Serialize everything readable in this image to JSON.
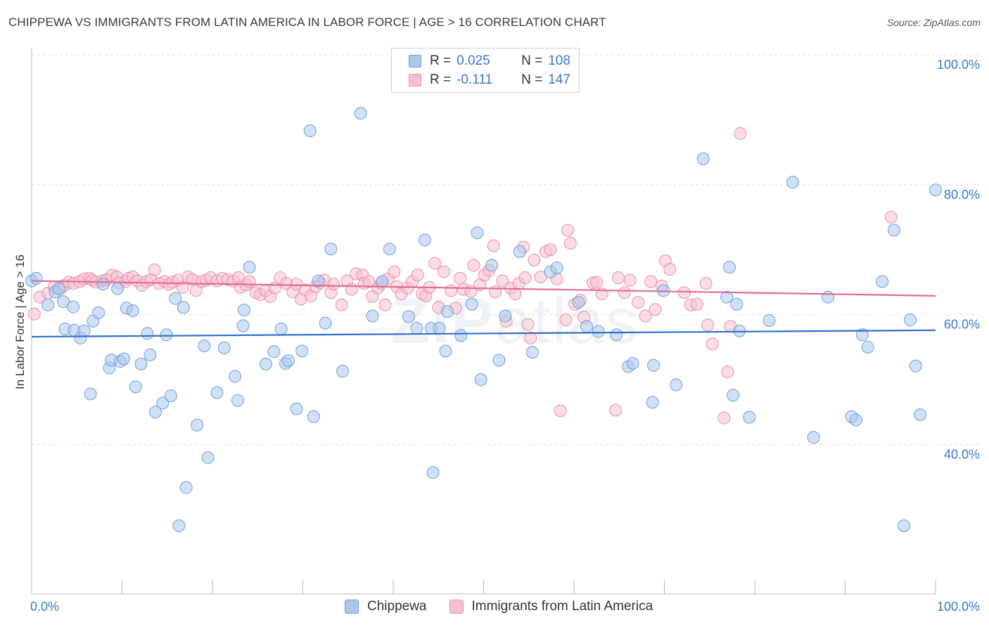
{
  "title": "CHIPPEWA VS IMMIGRANTS FROM LATIN AMERICA IN LABOR FORCE | AGE > 16 CORRELATION CHART",
  "source": "Source: ZipAtlas.com",
  "watermark": {
    "bold": "ZIP",
    "light": "atlas"
  },
  "colors": {
    "blue_fill": "#aac8ee",
    "blue_stroke": "#6f9fd8",
    "blue_line": "#2f6fce",
    "pink_fill": "#f6bfd0",
    "pink_stroke": "#e98fab",
    "pink_line": "#e36b94",
    "axis_label": "#3a78c9",
    "grid": "#dddddd"
  },
  "legend": {
    "rows": [
      {
        "r_label": "R =",
        "r_value": "0.025",
        "n_label": "N =",
        "n_value": "108"
      },
      {
        "r_label": "R =",
        "r_value": "-0.111",
        "n_label": "N =",
        "n_value": "147"
      }
    ]
  },
  "bottom_legend": {
    "series1": "Chippewa",
    "series2": "Immigrants from Latin America"
  },
  "chart_data": {
    "type": "scatter",
    "title": "CHIPPEWA VS IMMIGRANTS FROM LATIN AMERICA IN LABOR FORCE | AGE > 16 CORRELATION CHART",
    "xlabel": "",
    "ylabel": "In Labor Force | Age > 16",
    "xlim": [
      0,
      100
    ],
    "ylim": [
      17,
      100
    ],
    "x_tick_labels": [
      "0.0%",
      "100.0%"
    ],
    "y_ticks": [
      40,
      60,
      80,
      100
    ],
    "y_tick_labels": [
      "40.0%",
      "60.0%",
      "80.0%",
      "100.0%"
    ],
    "grid": "horizontal dashed",
    "legend_position": "top-center",
    "series": [
      {
        "name": "Chippewa",
        "r": 0.025,
        "n": 108,
        "trend": [
          [
            0,
            56.6
          ],
          [
            100,
            57.6
          ]
        ],
        "points": [
          [
            0,
            65.2
          ],
          [
            0.5,
            65.6
          ],
          [
            1.8,
            61.5
          ],
          [
            2.6,
            63.5
          ],
          [
            3,
            64
          ],
          [
            3.5,
            62
          ],
          [
            3.7,
            57.8
          ],
          [
            4.6,
            61.2
          ],
          [
            4.7,
            57.6
          ],
          [
            5.4,
            56.4
          ],
          [
            5.8,
            57.5
          ],
          [
            6.5,
            47.8
          ],
          [
            6.8,
            59
          ],
          [
            7.4,
            60.3
          ],
          [
            7.9,
            64.7
          ],
          [
            8.6,
            51.8
          ],
          [
            8.8,
            53
          ],
          [
            9.5,
            64
          ],
          [
            9.8,
            52.8
          ],
          [
            10.2,
            53.2
          ],
          [
            10.5,
            61
          ],
          [
            11.2,
            60.6
          ],
          [
            11.5,
            48.9
          ],
          [
            12.1,
            52.4
          ],
          [
            12.8,
            57.1
          ],
          [
            13.1,
            53.8
          ],
          [
            13.7,
            45
          ],
          [
            14.5,
            46.4
          ],
          [
            14.9,
            56.9
          ],
          [
            15.4,
            47.5
          ],
          [
            15.9,
            62.5
          ],
          [
            16.3,
            27.5
          ],
          [
            16.8,
            61.1
          ],
          [
            17.1,
            33.4
          ],
          [
            18.3,
            43
          ],
          [
            19.1,
            55.2
          ],
          [
            19.5,
            38
          ],
          [
            20.5,
            48
          ],
          [
            21.3,
            54.9
          ],
          [
            22.5,
            50.5
          ],
          [
            22.8,
            46.8
          ],
          [
            23.5,
            60.7
          ],
          [
            23.4,
            58.3
          ],
          [
            24.1,
            67.3
          ],
          [
            25.9,
            52.4
          ],
          [
            26.8,
            54.3
          ],
          [
            27.6,
            57.8
          ],
          [
            28.1,
            52.5
          ],
          [
            28.4,
            52.9
          ],
          [
            29.3,
            45.5
          ],
          [
            29.9,
            54.4
          ],
          [
            30.8,
            88.3
          ],
          [
            31.2,
            44.3
          ],
          [
            31.7,
            65.2
          ],
          [
            32.5,
            58.7
          ],
          [
            33.1,
            70.1
          ],
          [
            34.4,
            51.3
          ],
          [
            36.4,
            91
          ],
          [
            37.7,
            59.8
          ],
          [
            38.8,
            65.1
          ],
          [
            39.6,
            70.1
          ],
          [
            41.7,
            59.7
          ],
          [
            42.6,
            57.9
          ],
          [
            43.5,
            71.5
          ],
          [
            44.2,
            57.9
          ],
          [
            44.4,
            35.7
          ],
          [
            45.1,
            57.9
          ],
          [
            45.8,
            54.4
          ],
          [
            46,
            60.5
          ],
          [
            47.5,
            56.8
          ],
          [
            48.7,
            61.6
          ],
          [
            49.3,
            72.6
          ],
          [
            49.7,
            50
          ],
          [
            50.9,
            67.6
          ],
          [
            51.7,
            53
          ],
          [
            52.4,
            59.8
          ],
          [
            54,
            69.7
          ],
          [
            55.4,
            54.2
          ],
          [
            57.4,
            66.6
          ],
          [
            58.1,
            67.2
          ],
          [
            60.5,
            61.9
          ],
          [
            61.4,
            58.2
          ],
          [
            62.7,
            57.4
          ],
          [
            64.7,
            56.9
          ],
          [
            66,
            52
          ],
          [
            66.5,
            52.5
          ],
          [
            68.7,
            46.5
          ],
          [
            68.8,
            52.2
          ],
          [
            69.9,
            63.7
          ],
          [
            71.3,
            49.2
          ],
          [
            74.3,
            84
          ],
          [
            76.9,
            62.7
          ],
          [
            77.2,
            67.3
          ],
          [
            77.6,
            47.6
          ],
          [
            78,
            61.6
          ],
          [
            78.3,
            57.5
          ],
          [
            79.4,
            44.2
          ],
          [
            81.6,
            59.1
          ],
          [
            84.2,
            80.4
          ],
          [
            86.5,
            41.1
          ],
          [
            88.1,
            62.7
          ],
          [
            90.7,
            44.3
          ],
          [
            91.2,
            43.8
          ],
          [
            91.9,
            56.9
          ],
          [
            92.5,
            55
          ],
          [
            94.1,
            65.1
          ],
          [
            95.4,
            73
          ],
          [
            96.5,
            27.5
          ],
          [
            97.2,
            59.2
          ],
          [
            97.8,
            52.1
          ],
          [
            98.3,
            44.6
          ],
          [
            100,
            79.2
          ]
        ]
      },
      {
        "name": "Immigrants from Latin America",
        "r": -0.111,
        "n": 147,
        "trend": [
          [
            0,
            65.2
          ],
          [
            100,
            62.9
          ]
        ],
        "points": [
          [
            0.3,
            60.1
          ],
          [
            0.9,
            62.7
          ],
          [
            1.8,
            63.3
          ],
          [
            2.5,
            64.3
          ],
          [
            3.2,
            64
          ],
          [
            3.6,
            64.5
          ],
          [
            4.1,
            65
          ],
          [
            4.6,
            64.8
          ],
          [
            5.3,
            65.1
          ],
          [
            5.8,
            65.5
          ],
          [
            6.4,
            65.6
          ],
          [
            6.7,
            65.3
          ],
          [
            7.1,
            65
          ],
          [
            7.8,
            65.2
          ],
          [
            8.3,
            65.4
          ],
          [
            8.9,
            66.1
          ],
          [
            9.4,
            65.8
          ],
          [
            9.7,
            64.9
          ],
          [
            10.4,
            65.1
          ],
          [
            10.7,
            65.6
          ],
          [
            11.2,
            65.8
          ],
          [
            11.7,
            65.2
          ],
          [
            12.2,
            64.5
          ],
          [
            12.7,
            65.1
          ],
          [
            13.2,
            65.4
          ],
          [
            13.6,
            66.9
          ],
          [
            14.1,
            64.8
          ],
          [
            14.7,
            65.1
          ],
          [
            15.2,
            64.7
          ],
          [
            15.6,
            65
          ],
          [
            16.2,
            65.3
          ],
          [
            16.7,
            64.2
          ],
          [
            17.3,
            65.8
          ],
          [
            17.8,
            65.4
          ],
          [
            18.2,
            63.7
          ],
          [
            18.8,
            65.1
          ],
          [
            19.3,
            65.3
          ],
          [
            19.8,
            65.7
          ],
          [
            20.5,
            65.2
          ],
          [
            21.1,
            65.6
          ],
          [
            21.7,
            65.4
          ],
          [
            22.3,
            65.2
          ],
          [
            22.9,
            65.7
          ],
          [
            23.1,
            64.2
          ],
          [
            23.7,
            64.6
          ],
          [
            24.1,
            65.1
          ],
          [
            24.8,
            63.4
          ],
          [
            25.3,
            63.1
          ],
          [
            25.9,
            63.7
          ],
          [
            26.4,
            62.8
          ],
          [
            26.9,
            64.1
          ],
          [
            27.5,
            65.7
          ],
          [
            28.2,
            64.8
          ],
          [
            28.9,
            63.5
          ],
          [
            29.3,
            64.7
          ],
          [
            29.8,
            62.4
          ],
          [
            30.3,
            63.8
          ],
          [
            30.9,
            62.9
          ],
          [
            31.4,
            64.3
          ],
          [
            31.9,
            64.9
          ],
          [
            32.4,
            65.3
          ],
          [
            33.1,
            63.4
          ],
          [
            33.4,
            64.7
          ],
          [
            34.3,
            61.5
          ],
          [
            34.9,
            65.2
          ],
          [
            35.4,
            63.9
          ],
          [
            35.9,
            66.3
          ],
          [
            36.6,
            66.1
          ],
          [
            36.8,
            64.8
          ],
          [
            37.3,
            65.1
          ],
          [
            37.7,
            62.8
          ],
          [
            38.3,
            64.1
          ],
          [
            38.7,
            64.8
          ],
          [
            39.1,
            61.5
          ],
          [
            39.4,
            65.5
          ],
          [
            40.1,
            66.6
          ],
          [
            40.4,
            64.3
          ],
          [
            40.9,
            63.2
          ],
          [
            41.6,
            64.1
          ],
          [
            42.1,
            65.1
          ],
          [
            42.7,
            66.1
          ],
          [
            43.2,
            63.2
          ],
          [
            43.6,
            62.9
          ],
          [
            44,
            64.2
          ],
          [
            44.6,
            67.9
          ],
          [
            45,
            61.1
          ],
          [
            45.6,
            66.6
          ],
          [
            46.4,
            63.7
          ],
          [
            46.9,
            61
          ],
          [
            47.4,
            65.6
          ],
          [
            47.8,
            63.9
          ],
          [
            48.6,
            63.6
          ],
          [
            48.9,
            67.6
          ],
          [
            49.6,
            64.6
          ],
          [
            50.1,
            66.1
          ],
          [
            50.6,
            66.8
          ],
          [
            51.1,
            70.6
          ],
          [
            51.3,
            63.5
          ],
          [
            52.1,
            65.2
          ],
          [
            52.5,
            59
          ],
          [
            53,
            64.1
          ],
          [
            53.5,
            63.2
          ],
          [
            53.9,
            64.8
          ],
          [
            54.4,
            70.4
          ],
          [
            54.6,
            65.7
          ],
          [
            54.9,
            58.5
          ],
          [
            55.2,
            56.4
          ],
          [
            55.6,
            68.4
          ],
          [
            56.3,
            65.8
          ],
          [
            56.9,
            69.7
          ],
          [
            57.4,
            70
          ],
          [
            58.1,
            65.5
          ],
          [
            58.5,
            45.2
          ],
          [
            59.1,
            59.2
          ],
          [
            59.3,
            73
          ],
          [
            59.6,
            71
          ],
          [
            60.1,
            61.6
          ],
          [
            60.7,
            62.2
          ],
          [
            61.1,
            59.6
          ],
          [
            62.1,
            64.9
          ],
          [
            62.5,
            65
          ],
          [
            63.1,
            63.2
          ],
          [
            64.6,
            45.3
          ],
          [
            64.9,
            65.7
          ],
          [
            65.6,
            63.4
          ],
          [
            66.2,
            65.3
          ],
          [
            67.1,
            61.9
          ],
          [
            67.9,
            59.8
          ],
          [
            68.5,
            65.1
          ],
          [
            69,
            60.8
          ],
          [
            69.7,
            64.4
          ],
          [
            70.1,
            68.3
          ],
          [
            70.6,
            67
          ],
          [
            72.2,
            63.4
          ],
          [
            72.9,
            61.5
          ],
          [
            73.6,
            61.6
          ],
          [
            74.6,
            64.8
          ],
          [
            74.8,
            58.4
          ],
          [
            75.3,
            55.5
          ],
          [
            76.6,
            44.1
          ],
          [
            77,
            51.2
          ],
          [
            77.3,
            58.2
          ],
          [
            78.4,
            87.9
          ],
          [
            95.1,
            75
          ]
        ]
      }
    ]
  }
}
